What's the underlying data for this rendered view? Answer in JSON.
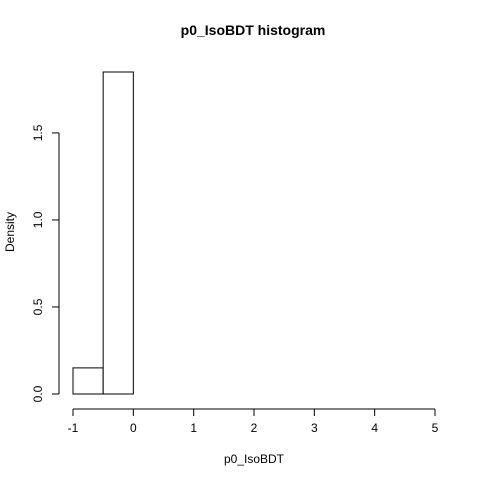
{
  "chart_data": {
    "type": "bar",
    "title": "p0_IsoBDT  histogram",
    "xlabel": "p0_IsoBDT",
    "ylabel": "Density",
    "bins": [
      {
        "start": -1.0,
        "end": -0.5,
        "density": 0.15
      },
      {
        "start": -0.5,
        "end": 0.0,
        "density": 1.85
      },
      {
        "start": 0.0,
        "end": 0.5,
        "density": 0.0
      },
      {
        "start": 0.5,
        "end": 1.0,
        "density": 0.0
      },
      {
        "start": 1.0,
        "end": 1.5,
        "density": 0.0
      },
      {
        "start": 1.5,
        "end": 2.0,
        "density": 0.0
      },
      {
        "start": 2.0,
        "end": 2.5,
        "density": 0.0
      },
      {
        "start": 2.5,
        "end": 3.0,
        "density": 0.0
      },
      {
        "start": 3.0,
        "end": 3.5,
        "density": 0.0
      },
      {
        "start": 3.5,
        "end": 4.0,
        "density": 0.0
      },
      {
        "start": 4.0,
        "end": 4.5,
        "density": 0.0
      },
      {
        "start": 4.5,
        "end": 5.0,
        "density": 0.0
      }
    ],
    "xlim": [
      -1,
      5
    ],
    "ylim": [
      0,
      1.85
    ],
    "xticks": [
      "-1",
      "0",
      "1",
      "2",
      "3",
      "4",
      "5"
    ],
    "yticks": [
      "0.0",
      "0.5",
      "1.0",
      "1.5"
    ],
    "grid": false,
    "legend": "none"
  }
}
